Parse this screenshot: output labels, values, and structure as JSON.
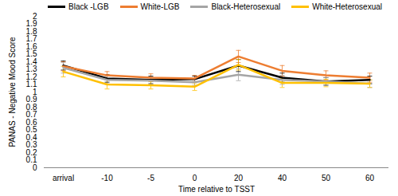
{
  "chart_data": {
    "type": "line",
    "x_label": "Time relative to TSST",
    "y_label": "PANAS - Negative Mood Score",
    "categories": [
      "arrival",
      "-10",
      "-5",
      "0",
      "20",
      "40",
      "50",
      "60"
    ],
    "ylim": [
      0,
      2
    ],
    "yticks": [
      0,
      0.1,
      0.2,
      0.3,
      0.4,
      0.5,
      0.6,
      0.7,
      0.8,
      0.9,
      1,
      1.1,
      1.2,
      1.3,
      1.4,
      1.5,
      1.6,
      1.7,
      1.8,
      1.9,
      2
    ],
    "grid": false,
    "legend": "top",
    "series": [
      {
        "name": "Black -LGB",
        "color": "#000000",
        "values": [
          1.35,
          1.18,
          1.16,
          1.17,
          1.35,
          1.19,
          1.14,
          1.16
        ],
        "errors": [
          0.06,
          0.05,
          0.05,
          0.04,
          0.08,
          0.06,
          0.05,
          0.05
        ]
      },
      {
        "name": "White-LGB",
        "color": "#ED7D31",
        "values": [
          1.34,
          1.22,
          1.19,
          1.18,
          1.47,
          1.28,
          1.22,
          1.19
        ],
        "errors": [
          0.06,
          0.05,
          0.05,
          0.04,
          0.08,
          0.07,
          0.06,
          0.06
        ]
      },
      {
        "name": "Black-Heterosexual",
        "color": "#A5A5A5",
        "values": [
          1.32,
          1.16,
          1.15,
          1.13,
          1.23,
          1.16,
          1.14,
          1.11
        ],
        "errors": [
          0.07,
          0.05,
          0.05,
          0.04,
          0.08,
          0.06,
          0.05,
          0.05
        ]
      },
      {
        "name": "White-Heterosexual",
        "color": "#FFC000",
        "values": [
          1.27,
          1.1,
          1.09,
          1.07,
          1.36,
          1.12,
          1.12,
          1.11
        ],
        "errors": [
          0.07,
          0.06,
          0.05,
          0.05,
          0.07,
          0.06,
          0.05,
          0.05
        ]
      }
    ]
  }
}
